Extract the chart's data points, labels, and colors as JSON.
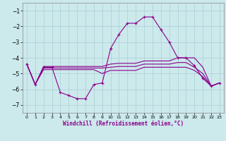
{
  "xlabel": "Windchill (Refroidissement éolien,°C)",
  "bg_color": "#cce9ec",
  "grid_color": "#aacfd4",
  "line_color": "#8b008b",
  "x_hours": [
    0,
    1,
    2,
    3,
    4,
    5,
    6,
    7,
    8,
    9,
    10,
    11,
    12,
    13,
    14,
    15,
    16,
    17,
    18,
    19,
    20,
    21,
    22,
    23
  ],
  "series1": [
    -4.4,
    -5.7,
    -4.6,
    -4.6,
    -6.2,
    -6.4,
    -6.6,
    -6.6,
    -5.7,
    -5.6,
    -3.4,
    -2.5,
    -1.8,
    -1.8,
    -1.4,
    -1.4,
    -2.2,
    -3.0,
    -4.0,
    -4.0,
    -4.5,
    -5.3,
    -5.8,
    -5.6
  ],
  "series2": [
    -4.4,
    -5.7,
    -4.55,
    -4.55,
    -4.55,
    -4.55,
    -4.55,
    -4.55,
    -4.55,
    -4.55,
    -4.4,
    -4.35,
    -4.35,
    -4.35,
    -4.2,
    -4.2,
    -4.2,
    -4.2,
    -4.0,
    -4.0,
    -4.0,
    -4.6,
    -5.8,
    -5.6
  ],
  "series3": [
    -4.4,
    -5.7,
    -4.65,
    -4.65,
    -4.65,
    -4.65,
    -4.65,
    -4.65,
    -4.65,
    -4.65,
    -4.6,
    -4.55,
    -4.55,
    -4.55,
    -4.4,
    -4.4,
    -4.4,
    -4.4,
    -4.3,
    -4.3,
    -4.6,
    -5.0,
    -5.8,
    -5.6
  ],
  "series4": [
    -4.4,
    -5.7,
    -4.75,
    -4.75,
    -4.75,
    -4.75,
    -4.75,
    -4.75,
    -4.75,
    -5.0,
    -4.8,
    -4.8,
    -4.8,
    -4.8,
    -4.6,
    -4.6,
    -4.6,
    -4.6,
    -4.6,
    -4.6,
    -4.8,
    -5.2,
    -5.8,
    -5.6
  ],
  "ylim": [
    -7.5,
    -0.5
  ],
  "yticks": [
    -7,
    -6,
    -5,
    -4,
    -3,
    -2,
    -1
  ],
  "xticks": [
    0,
    1,
    2,
    3,
    4,
    5,
    6,
    7,
    8,
    9,
    10,
    11,
    12,
    13,
    14,
    15,
    16,
    17,
    18,
    19,
    20,
    21,
    22,
    23
  ]
}
